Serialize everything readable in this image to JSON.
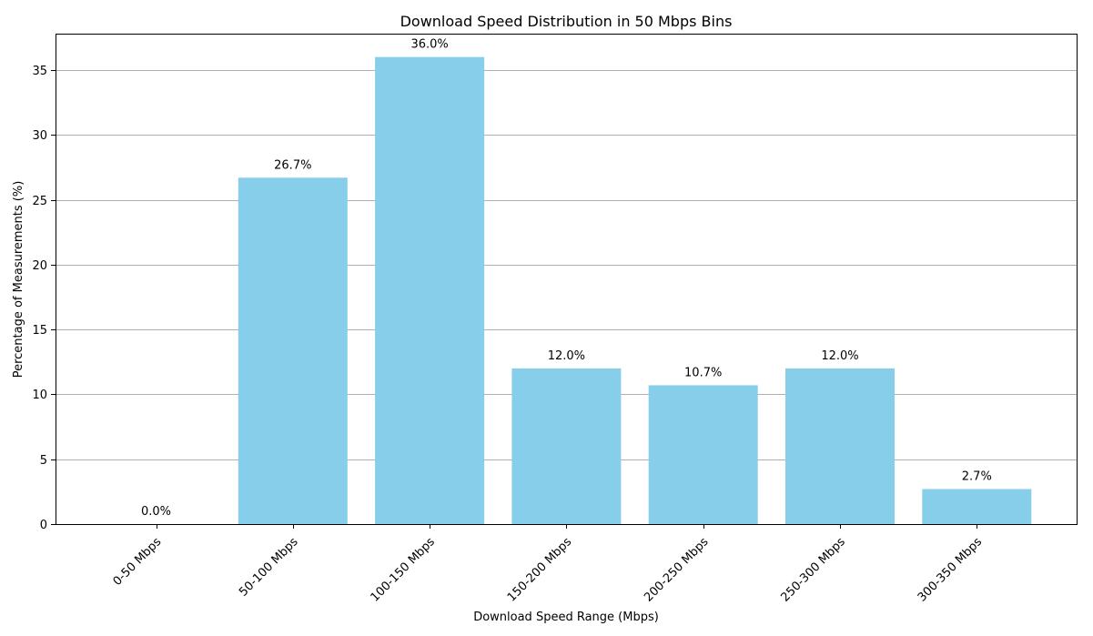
{
  "chart_data": {
    "type": "bar",
    "title": "Download Speed Distribution in 50 Mbps Bins",
    "xlabel": "Download Speed Range (Mbps)",
    "ylabel": "Percentage of Measurements (%)",
    "categories": [
      "0-50 Mbps",
      "50-100 Mbps",
      "100-150 Mbps",
      "150-200 Mbps",
      "200-250 Mbps",
      "250-300 Mbps",
      "300-350 Mbps"
    ],
    "values": [
      0.0,
      26.7,
      36.0,
      12.0,
      10.7,
      12.0,
      2.7
    ],
    "data_labels": [
      "0.0%",
      "26.7%",
      "36.0%",
      "12.0%",
      "10.7%",
      "12.0%",
      "2.7%"
    ],
    "ylim": [
      0,
      37.8
    ],
    "yticks": [
      0,
      5,
      10,
      15,
      20,
      25,
      30,
      35
    ],
    "grid": "horizontal",
    "bar_color": "#87CEEB",
    "grid_color": "#b0b0b0"
  }
}
